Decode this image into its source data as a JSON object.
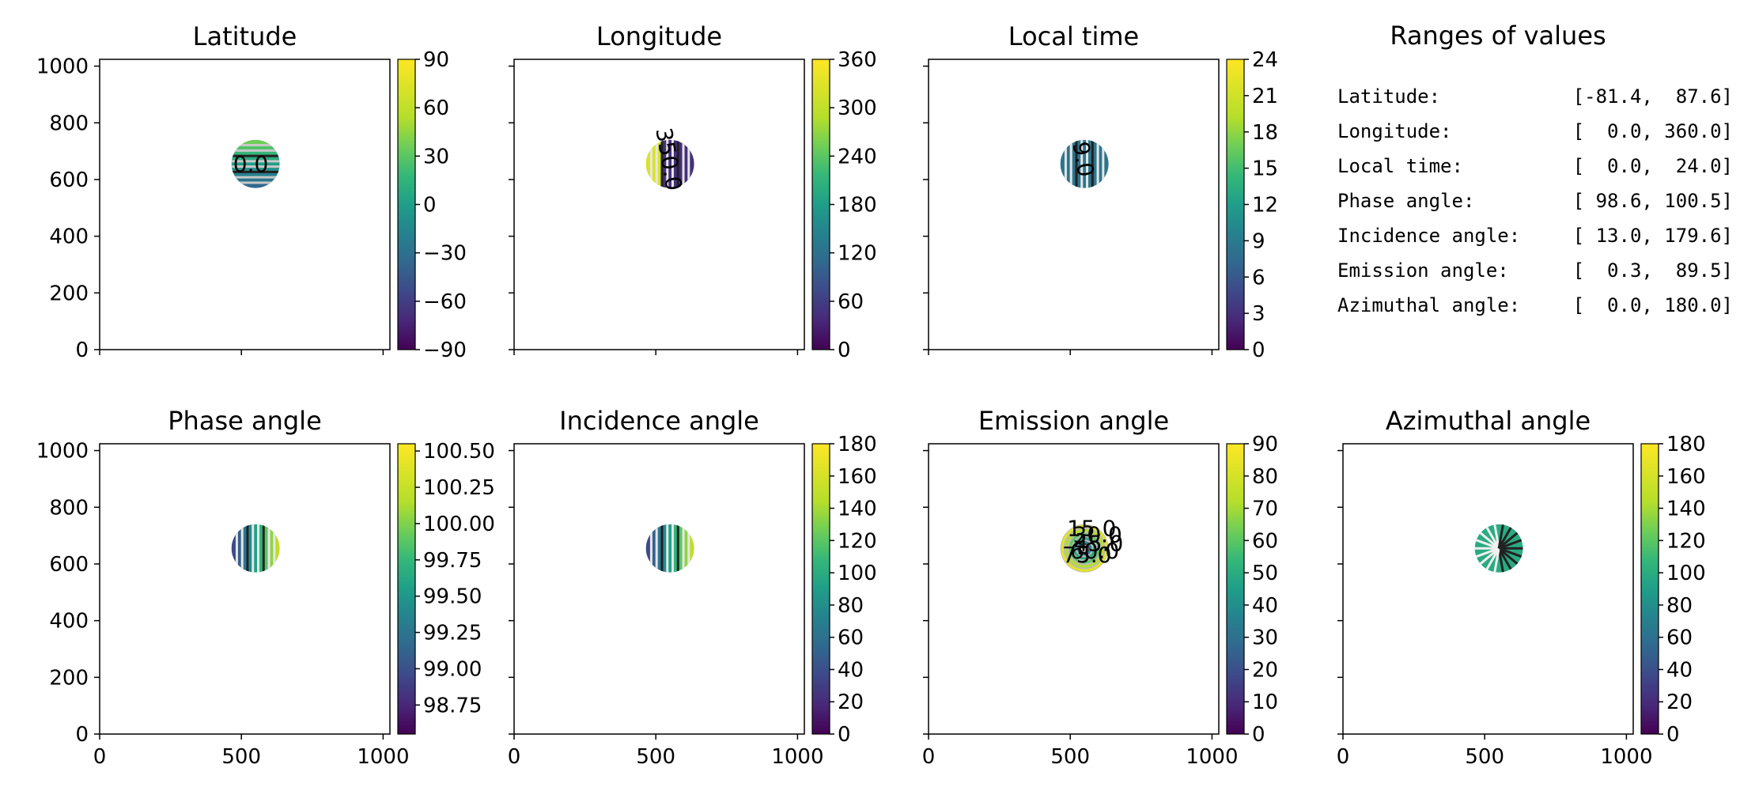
{
  "ranges": {
    "title": "Ranges of values",
    "rows": [
      {
        "label": "Latitude:",
        "value": "[-81.4,  87.6]"
      },
      {
        "label": "Longitude:",
        "value": "[  0.0, 360.0]"
      },
      {
        "label": "Local time:",
        "value": "[  0.0,  24.0]"
      },
      {
        "label": "Phase angle:",
        "value": "[ 98.6, 100.5]"
      },
      {
        "label": "Incidence angle:",
        "value": "[ 13.0, 179.6]"
      },
      {
        "label": "Emission angle:",
        "value": "[  0.3,  89.5]"
      },
      {
        "label": "Azimuthal angle:",
        "value": "[  0.0, 180.0]"
      }
    ]
  },
  "chart_data": [
    {
      "type": "heatmap",
      "title": "Latitude",
      "x_ticks": [
        "",
        "",
        ""
      ],
      "y_ticks": [
        "0",
        "200",
        "400",
        "600",
        "800",
        "1000"
      ],
      "xlim": [
        0,
        1024
      ],
      "ylim": [
        0,
        1024
      ],
      "colorbar": {
        "min": -90,
        "max": 90,
        "ticks": [
          "90",
          "60",
          "30",
          "0",
          "−30",
          "−60",
          "−90"
        ],
        "tick_values": [
          90,
          60,
          30,
          0,
          -30,
          -60,
          -90
        ]
      },
      "disc": {
        "cx": 550,
        "cy": 655,
        "r": 85
      },
      "data_range": [
        -81.4,
        87.6
      ],
      "pattern": "horizontal",
      "contour_labels": [
        "0.0"
      ]
    },
    {
      "type": "heatmap",
      "title": "Longitude",
      "x_ticks": [
        "",
        "",
        ""
      ],
      "y_ticks": [
        "",
        "",
        "",
        "",
        "",
        ""
      ],
      "xlim": [
        0,
        1024
      ],
      "ylim": [
        0,
        1024
      ],
      "colorbar": {
        "min": 0,
        "max": 360,
        "ticks": [
          "360",
          "300",
          "240",
          "180",
          "120",
          "60",
          "0"
        ],
        "tick_values": [
          360,
          300,
          240,
          180,
          120,
          60,
          0
        ]
      },
      "disc": {
        "cx": 550,
        "cy": 655,
        "r": 85
      },
      "data_range": [
        0.0,
        360.0
      ],
      "pattern": "vertical",
      "contour_labels": [
        "350.0"
      ]
    },
    {
      "type": "heatmap",
      "title": "Local time",
      "x_ticks": [
        "",
        "",
        ""
      ],
      "y_ticks": [
        "",
        "",
        "",
        "",
        "",
        ""
      ],
      "xlim": [
        0,
        1024
      ],
      "ylim": [
        0,
        1024
      ],
      "colorbar": {
        "min": 0,
        "max": 24,
        "ticks": [
          "24",
          "21",
          "18",
          "15",
          "12",
          "9",
          "6",
          "3",
          "0"
        ],
        "tick_values": [
          24,
          21,
          18,
          15,
          12,
          9,
          6,
          3,
          0
        ]
      },
      "disc": {
        "cx": 550,
        "cy": 655,
        "r": 85
      },
      "data_range": [
        0.0,
        24.0
      ],
      "pattern": "vertical",
      "contour_labels": [
        "9.0"
      ]
    },
    {
      "type": "heatmap",
      "title": "Phase angle",
      "x_ticks": [
        "0",
        "500",
        "1000"
      ],
      "y_ticks": [
        "0",
        "200",
        "400",
        "600",
        "800",
        "1000"
      ],
      "xlim": [
        0,
        1024
      ],
      "ylim": [
        0,
        1024
      ],
      "colorbar": {
        "min": 98.55,
        "max": 100.55,
        "ticks": [
          "100.50",
          "100.25",
          "100.00",
          "99.75",
          "99.50",
          "99.25",
          "99.00",
          "98.75"
        ],
        "tick_values": [
          100.5,
          100.25,
          100.0,
          99.75,
          99.5,
          99.25,
          99.0,
          98.75
        ]
      },
      "disc": {
        "cx": 550,
        "cy": 655,
        "r": 85
      },
      "data_range": [
        98.6,
        100.5
      ],
      "pattern": "vertical",
      "contour_labels": []
    },
    {
      "type": "heatmap",
      "title": "Incidence angle",
      "x_ticks": [
        "0",
        "500",
        "1000"
      ],
      "y_ticks": [
        "",
        "",
        "",
        "",
        "",
        ""
      ],
      "xlim": [
        0,
        1024
      ],
      "ylim": [
        0,
        1024
      ],
      "colorbar": {
        "min": 0,
        "max": 180,
        "ticks": [
          "180",
          "160",
          "140",
          "120",
          "100",
          "80",
          "60",
          "40",
          "20",
          "0"
        ],
        "tick_values": [
          180,
          160,
          140,
          120,
          100,
          80,
          60,
          40,
          20,
          0
        ]
      },
      "disc": {
        "cx": 550,
        "cy": 655,
        "r": 85
      },
      "data_range": [
        13.0,
        179.6
      ],
      "pattern": "vertical",
      "contour_labels": []
    },
    {
      "type": "heatmap",
      "title": "Emission angle",
      "x_ticks": [
        "0",
        "500",
        "1000"
      ],
      "y_ticks": [
        "",
        "",
        "",
        "",
        "",
        ""
      ],
      "xlim": [
        0,
        1024
      ],
      "ylim": [
        0,
        1024
      ],
      "colorbar": {
        "min": 0,
        "max": 90,
        "ticks": [
          "90",
          "80",
          "70",
          "60",
          "50",
          "40",
          "30",
          "20",
          "10",
          "0"
        ],
        "tick_values": [
          90,
          80,
          70,
          60,
          50,
          40,
          30,
          20,
          10,
          0
        ]
      },
      "disc": {
        "cx": 550,
        "cy": 655,
        "r": 85
      },
      "data_range": [
        0.3,
        89.5
      ],
      "pattern": "rings",
      "contour_labels": [
        "15.0",
        "30.0",
        "45.0",
        "60.0",
        "75.0"
      ]
    },
    {
      "type": "heatmap",
      "title": "Azimuthal angle",
      "x_ticks": [
        "0",
        "500",
        "1000"
      ],
      "y_ticks": [
        "",
        "",
        "",
        "",
        "",
        ""
      ],
      "xlim": [
        0,
        1024
      ],
      "ylim": [
        0,
        1024
      ],
      "colorbar": {
        "min": 0,
        "max": 180,
        "ticks": [
          "180",
          "160",
          "140",
          "120",
          "100",
          "80",
          "60",
          "40",
          "20",
          "0"
        ],
        "tick_values": [
          180,
          160,
          140,
          120,
          100,
          80,
          60,
          40,
          20,
          0
        ]
      },
      "disc": {
        "cx": 550,
        "cy": 655,
        "r": 85
      },
      "data_range": [
        0.0,
        180.0
      ],
      "pattern": "radial",
      "contour_labels": []
    }
  ]
}
